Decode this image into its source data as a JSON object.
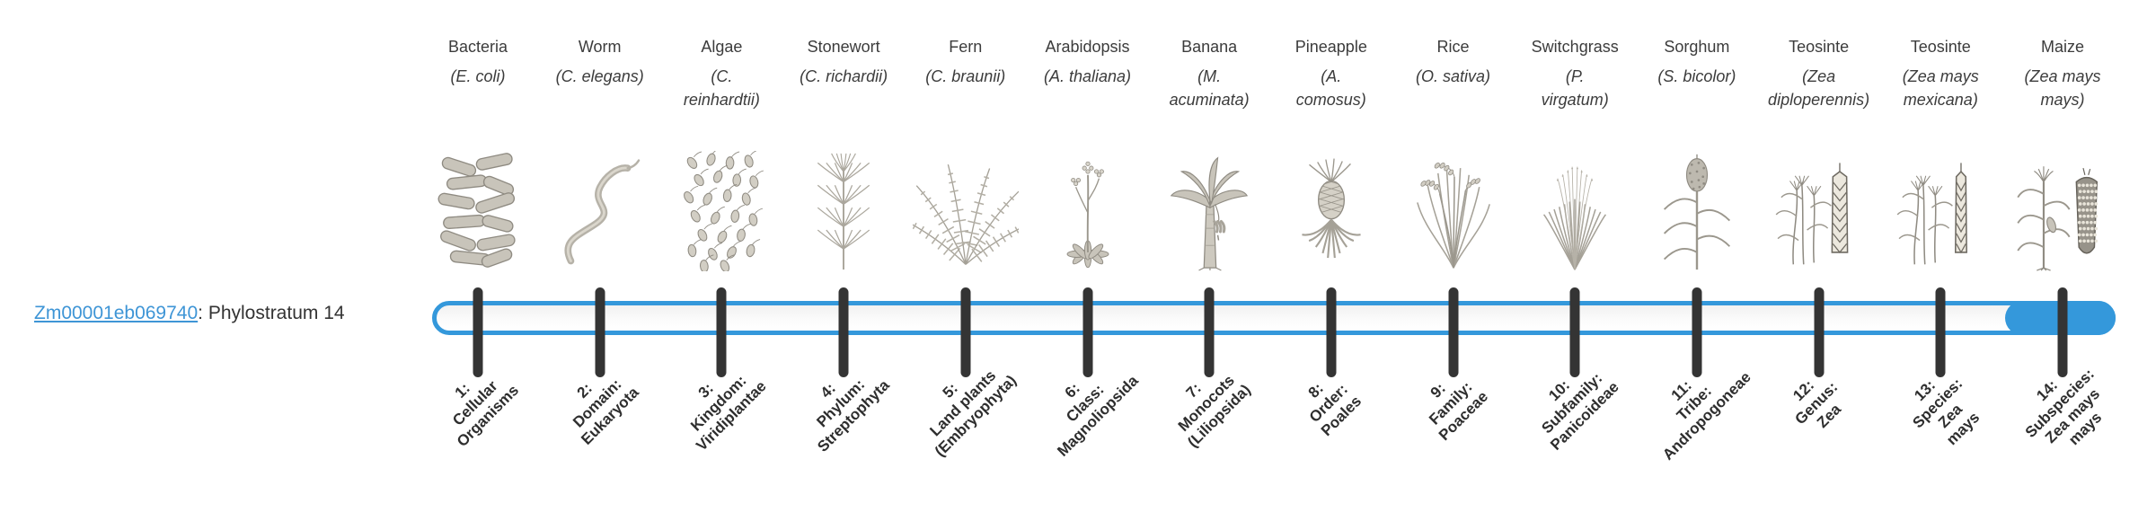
{
  "page": {
    "background_color": "#ffffff"
  },
  "gene": {
    "id": "Zm00001eb069740",
    "suffix": ": Phylostratum 14",
    "link_color": "#3e95d6"
  },
  "timeline": {
    "bar_color": "#3498db",
    "bar_fill_color": "#f7f7f7",
    "tick_color": "#343434",
    "stratum_count": 14,
    "highlighted_stratum": 14
  },
  "strata": [
    {
      "number": "1",
      "organism": "Bacteria",
      "scientific": "(E. coli)",
      "icon": "bacteria-icon",
      "label": "1:\nCellular\nOrganisms"
    },
    {
      "number": "2",
      "organism": "Worm",
      "scientific": "(C. elegans)",
      "icon": "worm-icon",
      "label": "2:\nDomain:\nEukaryota"
    },
    {
      "number": "3",
      "organism": "Algae",
      "scientific": "(C.\nreinhardtii)",
      "icon": "algae-icon",
      "label": "3:\nKingdom:\nViridiplantae"
    },
    {
      "number": "4",
      "organism": "Stonewort",
      "scientific": "(C. richardii)",
      "icon": "stonewort-icon",
      "label": "4:\nPhylum:\nStreptophyta"
    },
    {
      "number": "5",
      "organism": "Fern",
      "scientific": "(C. braunii)",
      "icon": "fern-icon",
      "label": "5:\nLand plants\n(Embryophyta)"
    },
    {
      "number": "6",
      "organism": "Arabidopsis",
      "scientific": "(A. thaliana)",
      "icon": "arabidopsis-icon",
      "label": "6:\nClass:\nMagnoliopsida"
    },
    {
      "number": "7",
      "organism": "Banana",
      "scientific": "(M.\nacuminata)",
      "icon": "banana-icon",
      "label": "7:\nMonocots\n(Liliopsida)"
    },
    {
      "number": "8",
      "organism": "Pineapple",
      "scientific": "(A.\ncomosus)",
      "icon": "pineapple-icon",
      "label": "8:\nOrder:\nPoales"
    },
    {
      "number": "9",
      "organism": "Rice",
      "scientific": "(O. sativa)",
      "icon": "rice-icon",
      "label": "9:\nFamily:\nPoaceae"
    },
    {
      "number": "10",
      "organism": "Switchgrass",
      "scientific": "(P.\nvirgatum)",
      "icon": "switchgrass-icon",
      "label": "10:\nSubfamily:\nPanicoideae"
    },
    {
      "number": "11",
      "organism": "Sorghum",
      "scientific": "(S. bicolor)",
      "icon": "sorghum-icon",
      "label": "11:\nTribe:\nAndropogoneae"
    },
    {
      "number": "12",
      "organism": "Teosinte",
      "scientific": "(Zea\ndiploperennis)",
      "icon": "teosinte-diploperennis-icon",
      "label": "12:\nGenus:\nZea"
    },
    {
      "number": "13",
      "organism": "Teosinte",
      "scientific": "(Zea mays\nmexicana)",
      "icon": "teosinte-mexicana-icon",
      "label": "13:\nSpecies:\nZea\nmays"
    },
    {
      "number": "14",
      "organism": "Maize",
      "scientific": "(Zea mays\nmays)",
      "icon": "maize-icon",
      "label": "14:\nSubspecies:\nZea mays\nmays"
    }
  ]
}
